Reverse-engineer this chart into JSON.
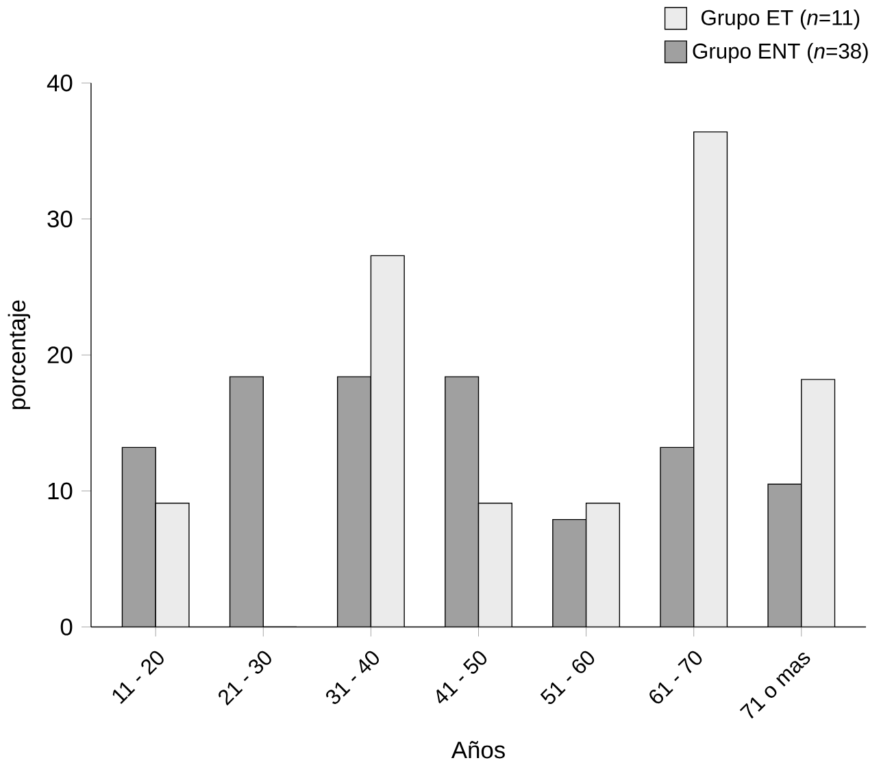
{
  "chart_data": {
    "type": "bar",
    "xlabel": "Años",
    "ylabel": "porcentaje",
    "categories": [
      "11 - 20",
      "21 - 30",
      "31 - 40",
      "41 - 50",
      "51 - 60",
      "61 - 70",
      "71 o mas"
    ],
    "series": [
      {
        "name": "Grupo ENT (*n*=38)",
        "color": "#a0a0a0",
        "values": [
          13.2,
          18.4,
          18.4,
          18.4,
          7.9,
          13.2,
          10.5
        ]
      },
      {
        "name": "Grupo ET (*n*=11)",
        "color": "#ebebeb",
        "values": [
          9.1,
          0,
          27.3,
          9.1,
          9.1,
          36.4,
          18.2
        ]
      }
    ],
    "ylim": [
      0,
      40
    ],
    "yticks": [
      0,
      10,
      20,
      30,
      40
    ],
    "grid": false,
    "legend": "top right"
  }
}
